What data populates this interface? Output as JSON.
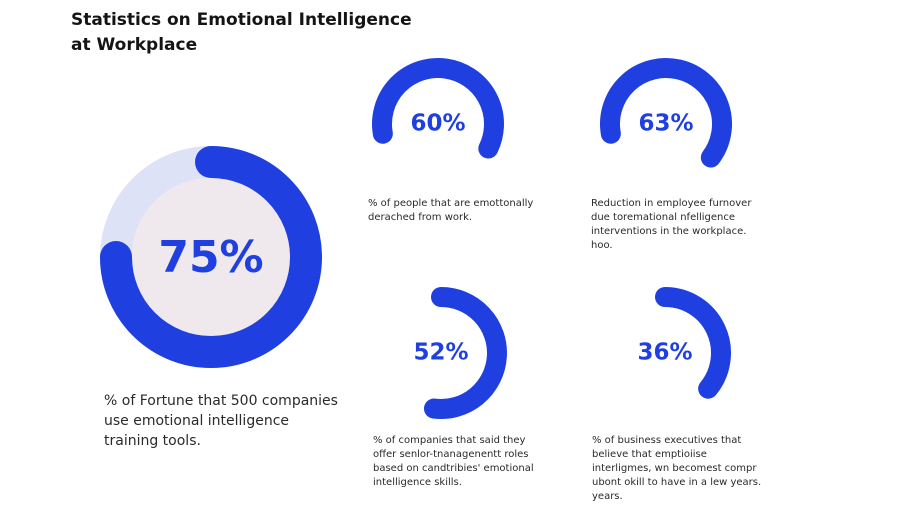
{
  "header": {
    "title": "Statistics on Emotional Intelligence at Workplace"
  },
  "colors": {
    "accent": "#1f3fe0",
    "track_light": "#dde2f7",
    "inner_fill": "#efe8ec",
    "text": "#141414"
  },
  "chart_data": {
    "type": "donut",
    "title": "Statistics on Emotional Intelligence at Workplace",
    "series": [
      {
        "value": 75,
        "label": "75%",
        "caption": "% of Fortune that 500 companies use emotional intelligence training tools."
      },
      {
        "value": 60,
        "label": "60%",
        "caption": "% of people that are emottonally derached from work."
      },
      {
        "value": 63,
        "label": "63%",
        "caption": "Reduction in employee furnover due toremational nfelligence interventions in the workplace. hoo."
      },
      {
        "value": 52,
        "label": "52%",
        "caption": "% of companies that said they offer senlor-tnanagenentt roles based on candtribies' emotional intelligence skills."
      },
      {
        "value": 36,
        "label": "36%",
        "caption": "% of business executives that believe that emptioiise interligmes, wn becomest compr ubont okill to have in a lew years. years."
      }
    ]
  }
}
